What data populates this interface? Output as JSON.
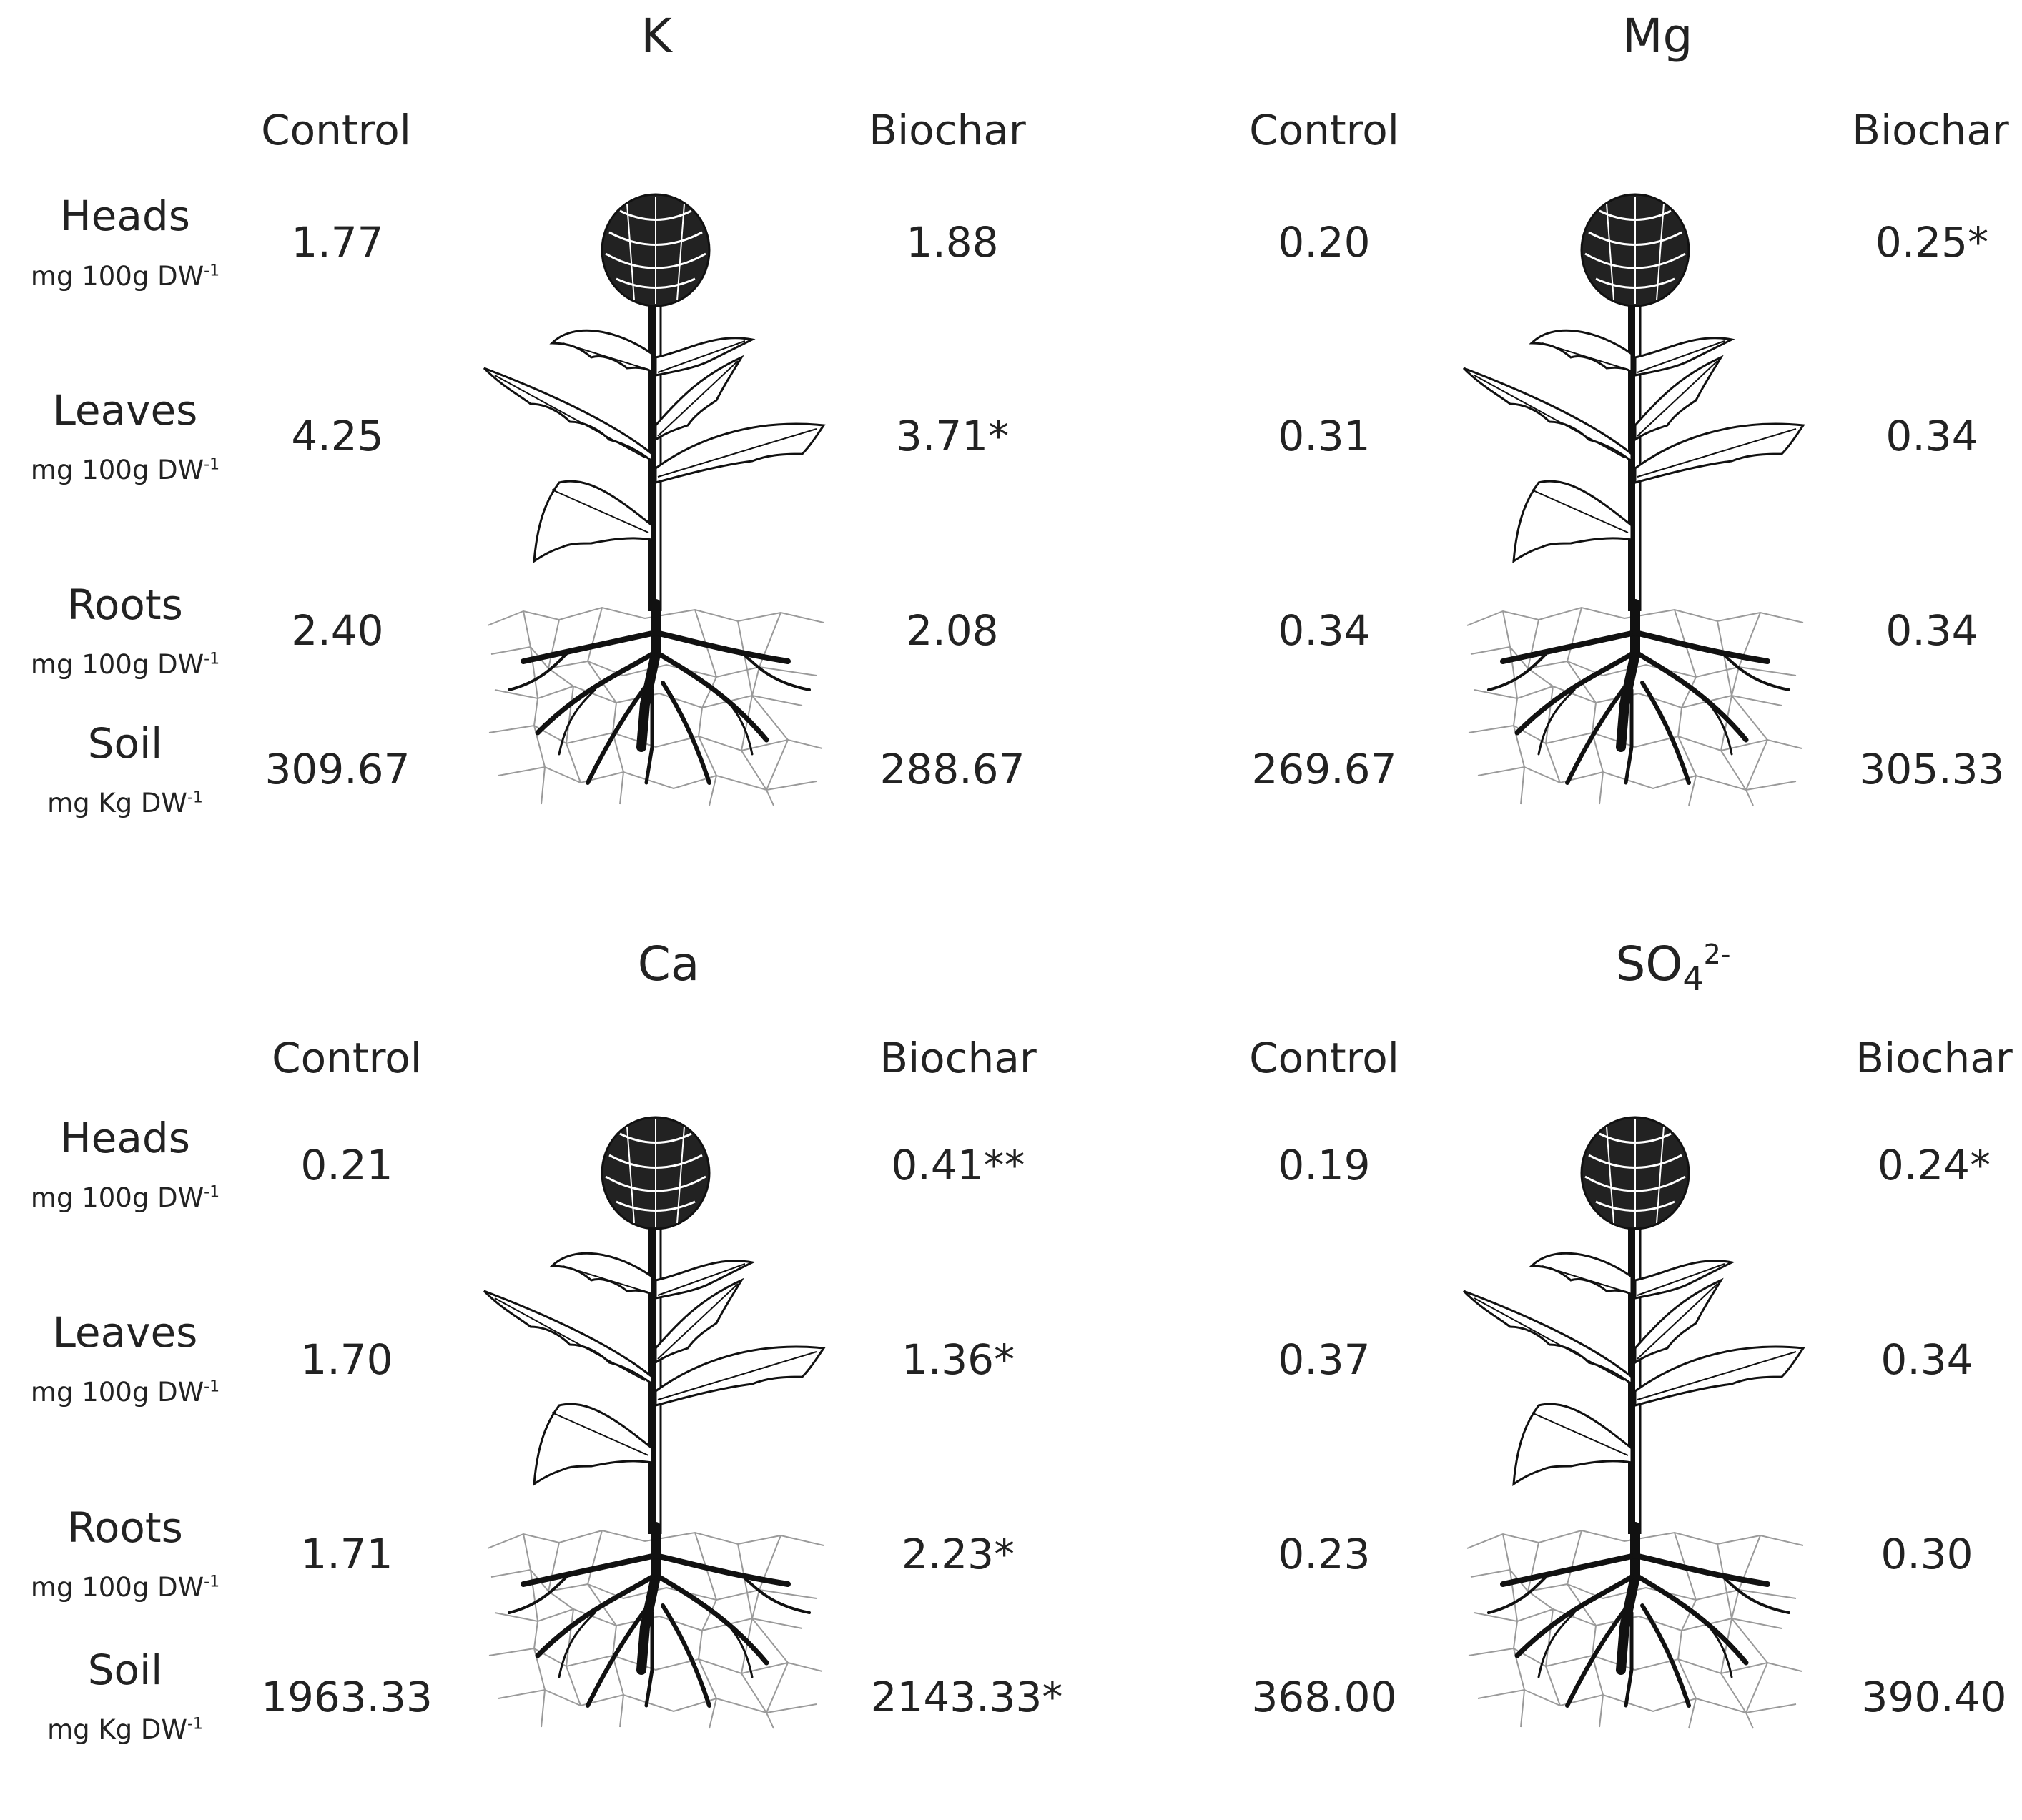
{
  "row_labels": {
    "heads": {
      "name": "Heads",
      "unit_base": "mg 100g DW",
      "unit_sup": "-1"
    },
    "leaves": {
      "name": "Leaves",
      "unit_base": "mg 100g DW",
      "unit_sup": "-1"
    },
    "roots": {
      "name": "Roots",
      "unit_base": "mg 100g DW",
      "unit_sup": "-1"
    },
    "soil": {
      "name": "Soil",
      "unit_base": "mg Kg DW",
      "unit_sup": "-1"
    }
  },
  "column_headers": {
    "control": "Control",
    "biochar": "Biochar"
  },
  "panels": {
    "K": {
      "title": "K",
      "control": {
        "heads": "1.77",
        "leaves": "4.25",
        "roots": "2.40",
        "soil": "309.67"
      },
      "biochar": {
        "heads": "1.88",
        "leaves": "3.71*",
        "roots": "2.08",
        "soil": "288.67"
      }
    },
    "Mg": {
      "title": "Mg",
      "control": {
        "heads": "0.20",
        "leaves": "0.31",
        "roots": "0.34",
        "soil": "269.67"
      },
      "biochar": {
        "heads": "0.25*",
        "leaves": "0.34",
        "roots": "0.34",
        "soil": "305.33"
      }
    },
    "Ca": {
      "title": "Ca",
      "control": {
        "heads": "0.21",
        "leaves": "1.70",
        "roots": "1.71",
        "soil": "1963.33"
      },
      "biochar": {
        "heads": "0.41**",
        "leaves": "1.36*",
        "roots": "2.23*",
        "soil": "2143.33*"
      }
    },
    "SO4": {
      "title_base": "SO",
      "title_sub": "4",
      "title_sup": "2-",
      "control": {
        "heads": "0.19",
        "leaves": "0.37",
        "roots": "0.23",
        "soil": "368.00"
      },
      "biochar": {
        "heads": "0.24*",
        "leaves": "0.34",
        "roots": "0.30",
        "soil": "390.40"
      }
    }
  },
  "icons": {
    "plant": "artichoke-plant-illustration"
  }
}
